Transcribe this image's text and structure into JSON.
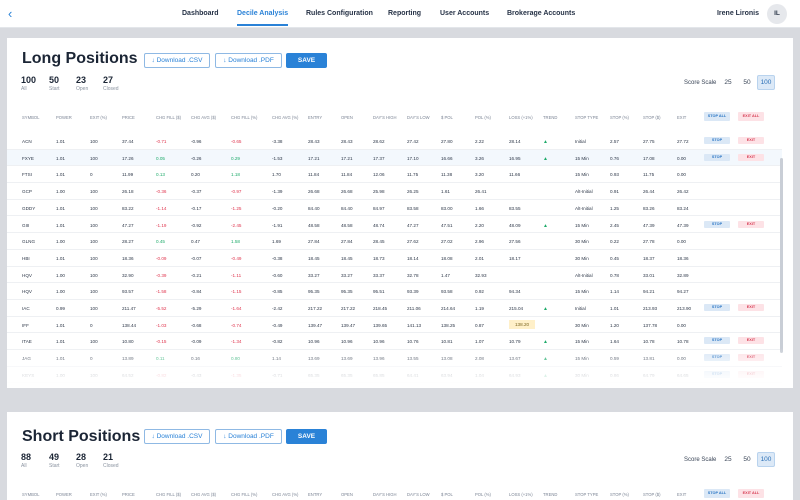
{
  "nav": {
    "back_icon": "chevron-left-icon",
    "tabs": [
      "Dashboard",
      "Decile Analysis",
      "Rules Configuration",
      "Reporting",
      "User Accounts",
      "Brokerage Accounts"
    ],
    "active_tab": "Decile Analysis",
    "user_name": "Irene Lironis",
    "avatar_initials": "IL"
  },
  "long": {
    "title": "Long Positions",
    "download_csv": "Download .CSV",
    "download_pdf": "Download .PDF",
    "save": "SAVE",
    "stats": [
      {
        "num": "100",
        "label": "All"
      },
      {
        "num": "50",
        "label": "Start"
      },
      {
        "num": "23",
        "label": "Open"
      },
      {
        "num": "27",
        "label": "Closed"
      }
    ],
    "scale_label": "Score Scale",
    "scale_options": [
      "25",
      "50",
      "100"
    ],
    "scale_selected": "100",
    "headers": [
      "SYMBOL",
      "POWER",
      "EXIT (%)",
      "PRICE",
      "CHG FILL ($)",
      "CHG AVG ($)",
      "CHG FILL (%)",
      "CHG AVG (%)",
      "ENTRY",
      "OPEN",
      "DAY'S HIGH",
      "DAY'S LOW",
      "$ POL",
      "POL (%)",
      "LOSS (+1%)",
      "TREND",
      "STOP TYPE",
      "STOP (%)",
      "STOP ($)",
      "EXIT"
    ],
    "stop_all": "STOP ALL",
    "exit_all": "EXIT ALL",
    "stop_label": "STOP",
    "exit_label": "EXIT",
    "rows": [
      {
        "cells": [
          "ACN",
          "1.01",
          "100",
          "37.44",
          "-0.71",
          "-0.96",
          "-0.65",
          "-3.38",
          "28.43",
          "28.43",
          "28.62",
          "27.42",
          "27.80",
          "2.22",
          "28.14",
          "▲",
          "Initial",
          "2.57",
          "27.75",
          "27.72"
        ],
        "dirs": [
          "down",
          "neutral",
          "down",
          "neutral"
        ],
        "actions": true,
        "hl": false
      },
      {
        "cells": [
          "FXYE",
          "1.01",
          "100",
          "17.26",
          "0.05",
          "-0.26",
          "0.29",
          "-1.53",
          "17.21",
          "17.21",
          "17.37",
          "17.10",
          "16.66",
          "3.26",
          "16.95",
          "▲",
          "15 Min",
          "0.76",
          "17.08",
          "0.00"
        ],
        "dirs": [
          "up",
          "neutral",
          "up",
          "neutral"
        ],
        "actions": true,
        "hl": true
      },
      {
        "cells": [
          "FTSI",
          "1.01",
          "0",
          "11.99",
          "0.13",
          "0.20",
          "1.18",
          "1.70",
          "11.84",
          "11.84",
          "12.06",
          "11.75",
          "11.38",
          "3.20",
          "11.66",
          "",
          "15 Min",
          "0.93",
          "11.75",
          "0.00"
        ],
        "dirs": [
          "up",
          "neutral",
          "up",
          "neutral"
        ],
        "actions": false,
        "hl": false
      },
      {
        "cells": [
          "GCP",
          "1.00",
          "100",
          "26.18",
          "-0.36",
          "-0.37",
          "-0.97",
          "-1.39",
          "26.68",
          "26.68",
          "25.98",
          "26.25",
          "1.61",
          "26.41",
          "",
          "",
          "Alt-Initial",
          "0.91",
          "26.44",
          "26.42"
        ],
        "dirs": [
          "down",
          "neutral",
          "down",
          "neutral"
        ],
        "actions": false,
        "hl": false
      },
      {
        "cells": [
          "GDDY",
          "1.01",
          "100",
          "83.22",
          "-1.14",
          "-0.17",
          "-1.25",
          "-0.20",
          "84.40",
          "84.40",
          "84.97",
          "83.58",
          "83.00",
          "1.66",
          "83.55",
          "",
          "Alt-Initial",
          "1.25",
          "83.26",
          "83.24"
        ],
        "dirs": [
          "down",
          "neutral",
          "down",
          "neutral"
        ],
        "actions": false,
        "hl": false
      },
      {
        "cells": [
          "GIII",
          "1.01",
          "100",
          "47.27",
          "-1.19",
          "-0.92",
          "-2.45",
          "-1.91",
          "48.58",
          "48.58",
          "48.74",
          "47.27",
          "47.51",
          "2.20",
          "48.09",
          "▲",
          "15 Min",
          "2.45",
          "47.39",
          "47.39"
        ],
        "dirs": [
          "down",
          "neutral",
          "down",
          "neutral"
        ],
        "actions": true,
        "hl": false
      },
      {
        "cells": [
          "GLNG",
          "1.00",
          "100",
          "28.27",
          "0.45",
          "0.47",
          "1.58",
          "1.69",
          "27.84",
          "27.84",
          "28.45",
          "27.62",
          "27.02",
          "2.96",
          "27.56",
          "",
          "30 Min",
          "0.22",
          "27.78",
          "0.00"
        ],
        "dirs": [
          "up",
          "neutral",
          "up",
          "neutral"
        ],
        "actions": false,
        "hl": false
      },
      {
        "cells": [
          "HBI",
          "1.01",
          "100",
          "18.36",
          "-0.09",
          "-0.07",
          "-0.49",
          "-0.38",
          "18.45",
          "18.45",
          "18.73",
          "18.14",
          "18.08",
          "2.01",
          "18.17",
          "",
          "30 Min",
          "0.45",
          "18.37",
          "18.36"
        ],
        "dirs": [
          "down",
          "neutral",
          "down",
          "neutral"
        ],
        "actions": false,
        "hl": false
      },
      {
        "cells": [
          "HQV",
          "1.00",
          "100",
          "32.90",
          "-0.39",
          "-0.21",
          "-1.11",
          "-0.60",
          "33.27",
          "33.27",
          "33.37",
          "32.78",
          "1.47",
          "32.93",
          "",
          "",
          "Alt-Initial",
          "0.78",
          "33.01",
          "32.89"
        ],
        "dirs": [
          "down",
          "neutral",
          "down",
          "neutral"
        ],
        "actions": false,
        "hl": false
      },
      {
        "cells": [
          "HQV",
          "1.00",
          "100",
          "93.57",
          "-1.58",
          "-0.84",
          "-1.15",
          "-0.85",
          "95.35",
          "95.35",
          "95.51",
          "93.39",
          "93.58",
          "0.92",
          "94.34",
          "",
          "15 Min",
          "1.14",
          "94.21",
          "94.27"
        ],
        "dirs": [
          "down",
          "neutral",
          "down",
          "neutral"
        ],
        "actions": false,
        "hl": false
      },
      {
        "cells": [
          "IAC",
          "0.99",
          "100",
          "211.47",
          "-5.52",
          "-5.29",
          "-1.64",
          "-2.42",
          "217.22",
          "217.22",
          "218.45",
          "211.06",
          "214.64",
          "1.19",
          "215.04",
          "▲",
          "Initial",
          "1.01",
          "213.93",
          "213.90"
        ],
        "dirs": [
          "down",
          "neutral",
          "down",
          "neutral"
        ],
        "actions": true,
        "hl": false
      },
      {
        "cells": [
          "IFF",
          "1.01",
          "0",
          "138.44",
          "-1.03",
          "-0.68",
          "-0.74",
          "-0.49",
          "139.47",
          "139.47",
          "139.65",
          "141.13",
          "138.25",
          "0.87",
          "138.20",
          "",
          "30 Min",
          "1.20",
          "137.78",
          "0.00"
        ],
        "dirs": [
          "down",
          "neutral",
          "down",
          "neutral"
        ],
        "actions": false,
        "hl": false,
        "vwap": true
      },
      {
        "cells": [
          "ITAE",
          "1.01",
          "100",
          "10.80",
          "-0.15",
          "-0.09",
          "-1.34",
          "-0.82",
          "10.96",
          "10.96",
          "10.96",
          "10.76",
          "10.81",
          "1.07",
          "10.79",
          "▲",
          "15 Min",
          "1.64",
          "10.78",
          "10.78"
        ],
        "dirs": [
          "down",
          "neutral",
          "down",
          "neutral"
        ],
        "actions": true,
        "hl": false
      },
      {
        "cells": [
          "JAG",
          "1.01",
          "0",
          "13.89",
          "0.11",
          "0.16",
          "0.80",
          "1.14",
          "13.69",
          "13.69",
          "13.96",
          "13.55",
          "13.08",
          "2.08",
          "13.67",
          "▲",
          "15 Min",
          "0.59",
          "13.81",
          "0.00"
        ],
        "dirs": [
          "up",
          "neutral",
          "up",
          "neutral"
        ],
        "actions": true,
        "hl": false
      },
      {
        "cells": [
          "KEYS",
          "1.00",
          "100",
          "64.52",
          "-0.82",
          "-0.43",
          "-1.35",
          "-0.71",
          "65.35",
          "65.35",
          "65.85",
          "64.41",
          "63.94",
          "1.04",
          "64.93",
          "▲",
          "30 Min",
          "0.86",
          "64.79",
          "64.65"
        ],
        "dirs": [
          "down",
          "neutral",
          "down",
          "neutral"
        ],
        "actions": true,
        "hl": false
      }
    ]
  },
  "short": {
    "title": "Short Positions",
    "download_csv": "Download .CSV",
    "download_pdf": "Download .PDF",
    "save": "SAVE",
    "stats": [
      {
        "num": "88",
        "label": "All"
      },
      {
        "num": "49",
        "label": "Start"
      },
      {
        "num": "28",
        "label": "Open"
      },
      {
        "num": "21",
        "label": "Closed"
      }
    ],
    "scale_label": "Score Scale",
    "scale_options": [
      "25",
      "50",
      "100"
    ],
    "scale_selected": "100",
    "headers": [
      "SYMBOL",
      "POWER",
      "EXIT (%)",
      "PRICE",
      "CHG FILL ($)",
      "CHG AVG ($)",
      "CHG FILL (%)",
      "CHG AVG (%)",
      "ENTRY",
      "OPEN",
      "DAY'S HIGH",
      "DAY'S LOW",
      "$ POL",
      "POL (%)",
      "LOSS (+1%)",
      "TREND",
      "STOP TYPE",
      "STOP (%)",
      "STOP ($)",
      "EXIT"
    ],
    "stop_all": "STOP ALL",
    "exit_all": "EXIT ALL"
  }
}
